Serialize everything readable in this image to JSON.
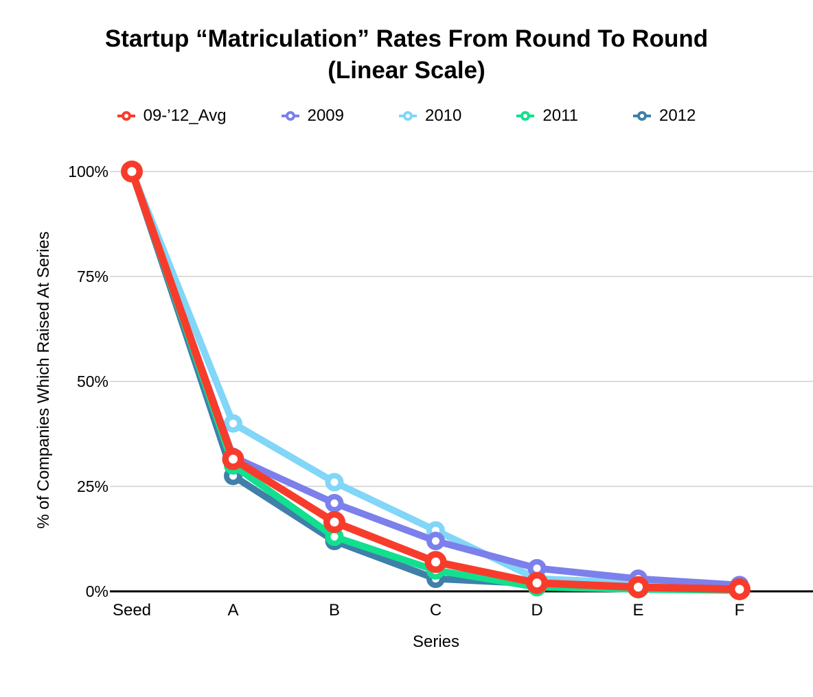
{
  "title": {
    "line1": "Startup “Matriculation” Rates From Round To Round",
    "line2": "(Linear Scale)"
  },
  "chart_data": {
    "type": "line",
    "categories": [
      "Seed",
      "A",
      "B",
      "C",
      "D",
      "E",
      "F"
    ],
    "xlabel": "Series",
    "ylabel": "% of Companies Which Raised At Series",
    "ylim": [
      0,
      100
    ],
    "yticks": [
      {
        "value": 0,
        "label": "0%"
      },
      {
        "value": 25,
        "label": "25%"
      },
      {
        "value": 50,
        "label": "50%"
      },
      {
        "value": 75,
        "label": "75%"
      },
      {
        "value": 100,
        "label": "100%"
      }
    ],
    "grid": "horizontal",
    "legend_position": "top",
    "series": [
      {
        "name": "09-’12_Avg",
        "color": "#F83C2B",
        "emphasis": true,
        "values": [
          100,
          31.5,
          16.5,
          7,
          2,
          1,
          0.5
        ]
      },
      {
        "name": "2009",
        "color": "#7C80EB",
        "emphasis": false,
        "values": [
          100,
          32,
          21,
          12,
          5.5,
          3,
          1.5
        ]
      },
      {
        "name": "2010",
        "color": "#82D6F7",
        "emphasis": false,
        "values": [
          100,
          40,
          26,
          14.5,
          3,
          2,
          0.5
        ]
      },
      {
        "name": "2011",
        "color": "#11E08E",
        "emphasis": false,
        "values": [
          100,
          30,
          13,
          5,
          1,
          0.5,
          0.2
        ]
      },
      {
        "name": "2012",
        "color": "#3F80A9",
        "emphasis": false,
        "values": [
          100,
          27.5,
          12,
          3,
          1.8,
          1,
          0.4
        ]
      }
    ],
    "z_order": [
      "2010",
      "2009",
      "2012",
      "2011",
      "09-’12_Avg"
    ],
    "colors": {
      "gridline": "#DCDCDC",
      "zero_axis": "#000000",
      "marker_hole": "#FFFFFF",
      "text": "#000000",
      "background": "#FFFFFF"
    }
  }
}
